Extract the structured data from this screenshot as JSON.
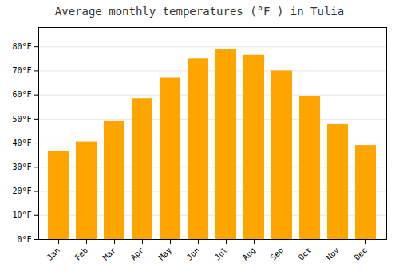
{
  "chart_data": {
    "type": "bar",
    "title": "Average monthly temperatures (°F ) in Tulia",
    "categories": [
      "Jan",
      "Feb",
      "Mar",
      "Apr",
      "May",
      "Jun",
      "Jul",
      "Aug",
      "Sep",
      "Oct",
      "Nov",
      "Dec"
    ],
    "values": [
      36.5,
      40.5,
      49,
      58.5,
      67,
      75,
      79,
      76.5,
      70,
      59.5,
      48,
      39
    ],
    "color": "#FFA500",
    "ylim": [
      0,
      88
    ],
    "yticks": [
      {
        "value": 0,
        "label": "0°F"
      },
      {
        "value": 10,
        "label": "10°F"
      },
      {
        "value": 20,
        "label": "20°F"
      },
      {
        "value": 30,
        "label": "30°F"
      },
      {
        "value": 40,
        "label": "40°F"
      },
      {
        "value": 50,
        "label": "50°F"
      },
      {
        "value": 60,
        "label": "60°F"
      },
      {
        "value": 70,
        "label": "70°F"
      },
      {
        "value": 80,
        "label": "80°F"
      }
    ],
    "grid": true
  }
}
